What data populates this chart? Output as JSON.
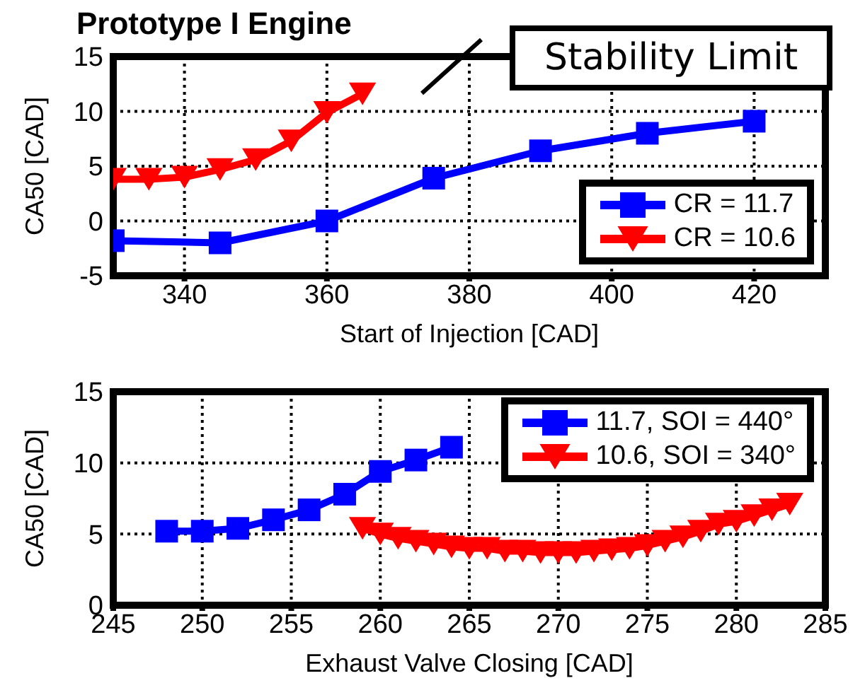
{
  "chart_data": [
    {
      "type": "line",
      "title": "Prototype I Engine",
      "xlabel": "Start of Injection [CAD]",
      "ylabel": "CA50 [CAD]",
      "annotations": [
        "Stability Limit"
      ],
      "xlim": [
        330,
        430
      ],
      "xticks": [
        340,
        360,
        380,
        400,
        420
      ],
      "ylim": [
        -5,
        15
      ],
      "yticks": [
        -5,
        0,
        5,
        10,
        15
      ],
      "grid": true,
      "line_style": "solid",
      "legend": "bottom right",
      "series": [
        {
          "name": "CR = 11.7",
          "color": "#0000ff",
          "marker": "square",
          "x": [
            330,
            345,
            360,
            375,
            390,
            405,
            420
          ],
          "values": [
            -1.8,
            -2,
            0,
            3.9,
            6.4,
            8.0,
            9.1
          ]
        },
        {
          "name": "CR = 10.6",
          "color": "#ff0000",
          "marker": "triangle",
          "x": [
            330,
            335,
            340,
            345,
            350,
            355,
            360,
            365
          ],
          "values": [
            3.8,
            3.8,
            4.0,
            4.7,
            5.6,
            7.3,
            9.9,
            11.6
          ]
        }
      ]
    },
    {
      "type": "line",
      "xlabel": "Exhaust Valve Closing [CAD]",
      "ylabel": "CA50 [CAD]",
      "xlim": [
        245,
        285
      ],
      "xticks": [
        245,
        250,
        255,
        260,
        265,
        270,
        275,
        280,
        285
      ],
      "ylim": [
        0,
        15
      ],
      "yticks": [
        0,
        5,
        10,
        15
      ],
      "grid": true,
      "line_style": "solid",
      "legend": "top right",
      "series": [
        {
          "name": "11.7, SOI = 440°",
          "color": "#0000ff",
          "marker": "square",
          "x": [
            248,
            250,
            252,
            254,
            256,
            258,
            260,
            262,
            264
          ],
          "values": [
            5.2,
            5.2,
            5.4,
            6.0,
            6.7,
            7.8,
            9.4,
            10.2,
            11.1
          ]
        },
        {
          "name": "10.6, SOI = 340°",
          "color": "#ff0000",
          "marker": "triangle",
          "x": [
            259,
            260,
            261,
            262,
            263,
            264,
            265,
            266,
            267,
            268,
            269,
            270,
            271,
            272,
            273,
            274,
            275,
            276,
            277,
            278,
            279,
            280,
            281,
            282,
            283
          ],
          "values": [
            5.4,
            5.0,
            4.7,
            4.5,
            4.3,
            4.1,
            4.0,
            4.0,
            3.8,
            3.8,
            3.7,
            3.7,
            3.7,
            3.8,
            3.9,
            4.0,
            4.2,
            4.5,
            4.8,
            5.2,
            5.7,
            5.9,
            6.3,
            6.7,
            7.1
          ]
        }
      ]
    }
  ]
}
